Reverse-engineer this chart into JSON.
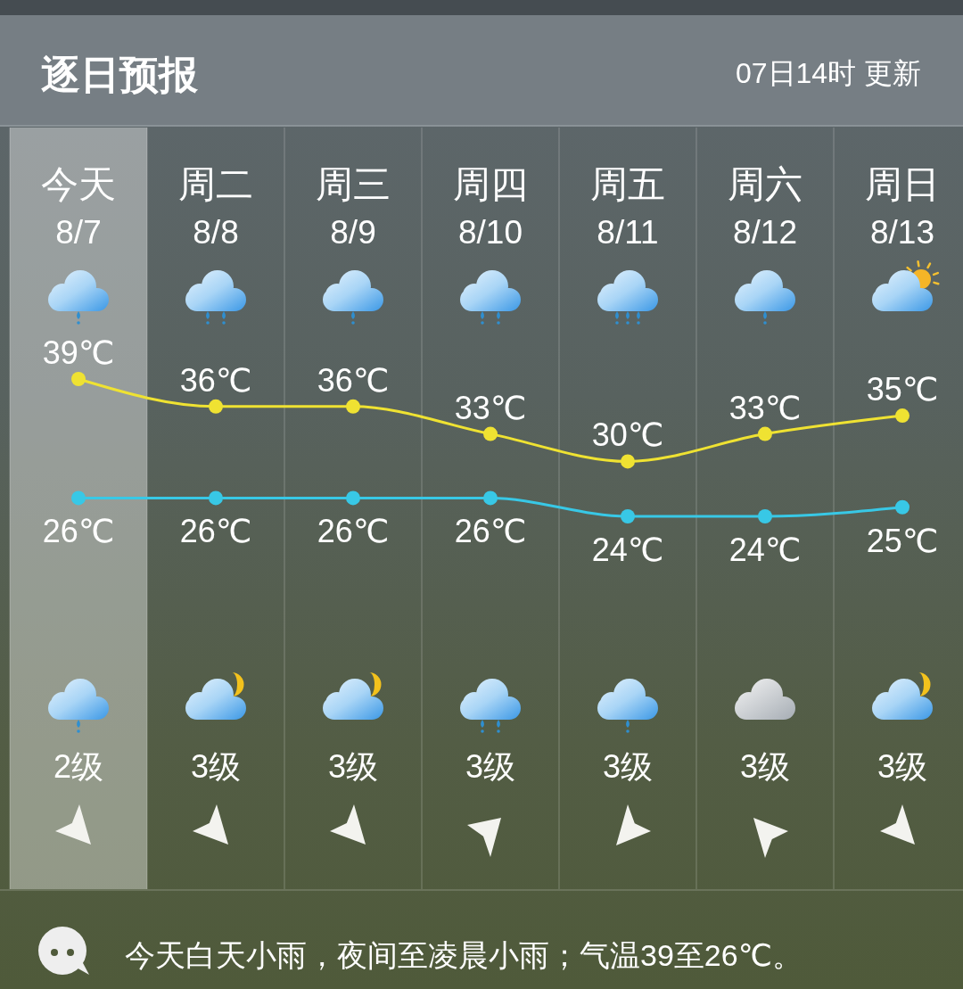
{
  "chart_data": {
    "type": "line",
    "title": "逐日预报",
    "subtitle": "07日14时 更新",
    "categories": [
      "今天\n8/7",
      "周二\n8/8",
      "周三\n8/9",
      "周四\n8/10",
      "周五\n8/11",
      "周六\n8/12",
      "周日\n8/13"
    ],
    "series": [
      {
        "color": "#efe232",
        "values": [
          39,
          36,
          36,
          33,
          30,
          33,
          35
        ],
        "value_labels": [
          "39℃",
          "36℃",
          "36℃",
          "33℃",
          "30℃",
          "33℃",
          "35℃"
        ]
      },
      {
        "color": "#38c8e6",
        "values": [
          26,
          26,
          26,
          26,
          24,
          24,
          25
        ],
        "value_labels": [
          "26℃",
          "26℃",
          "26℃",
          "26℃",
          "24℃",
          "24℃",
          "25℃"
        ]
      }
    ],
    "marker": "circle",
    "line_style": "solid",
    "tick_labels": "x",
    "bands": [
      {
        "axis": "x",
        "from": "今天\n8/7",
        "to": "今天\n8/7",
        "color": "#ffffff"
      }
    ],
    "annotations": [
      "2级",
      "3级",
      "3级",
      "3级",
      "3级",
      "3级",
      "3级",
      "今天白天小雨，夜间至凌晨小雨；气温39至26℃。"
    ]
  }
}
